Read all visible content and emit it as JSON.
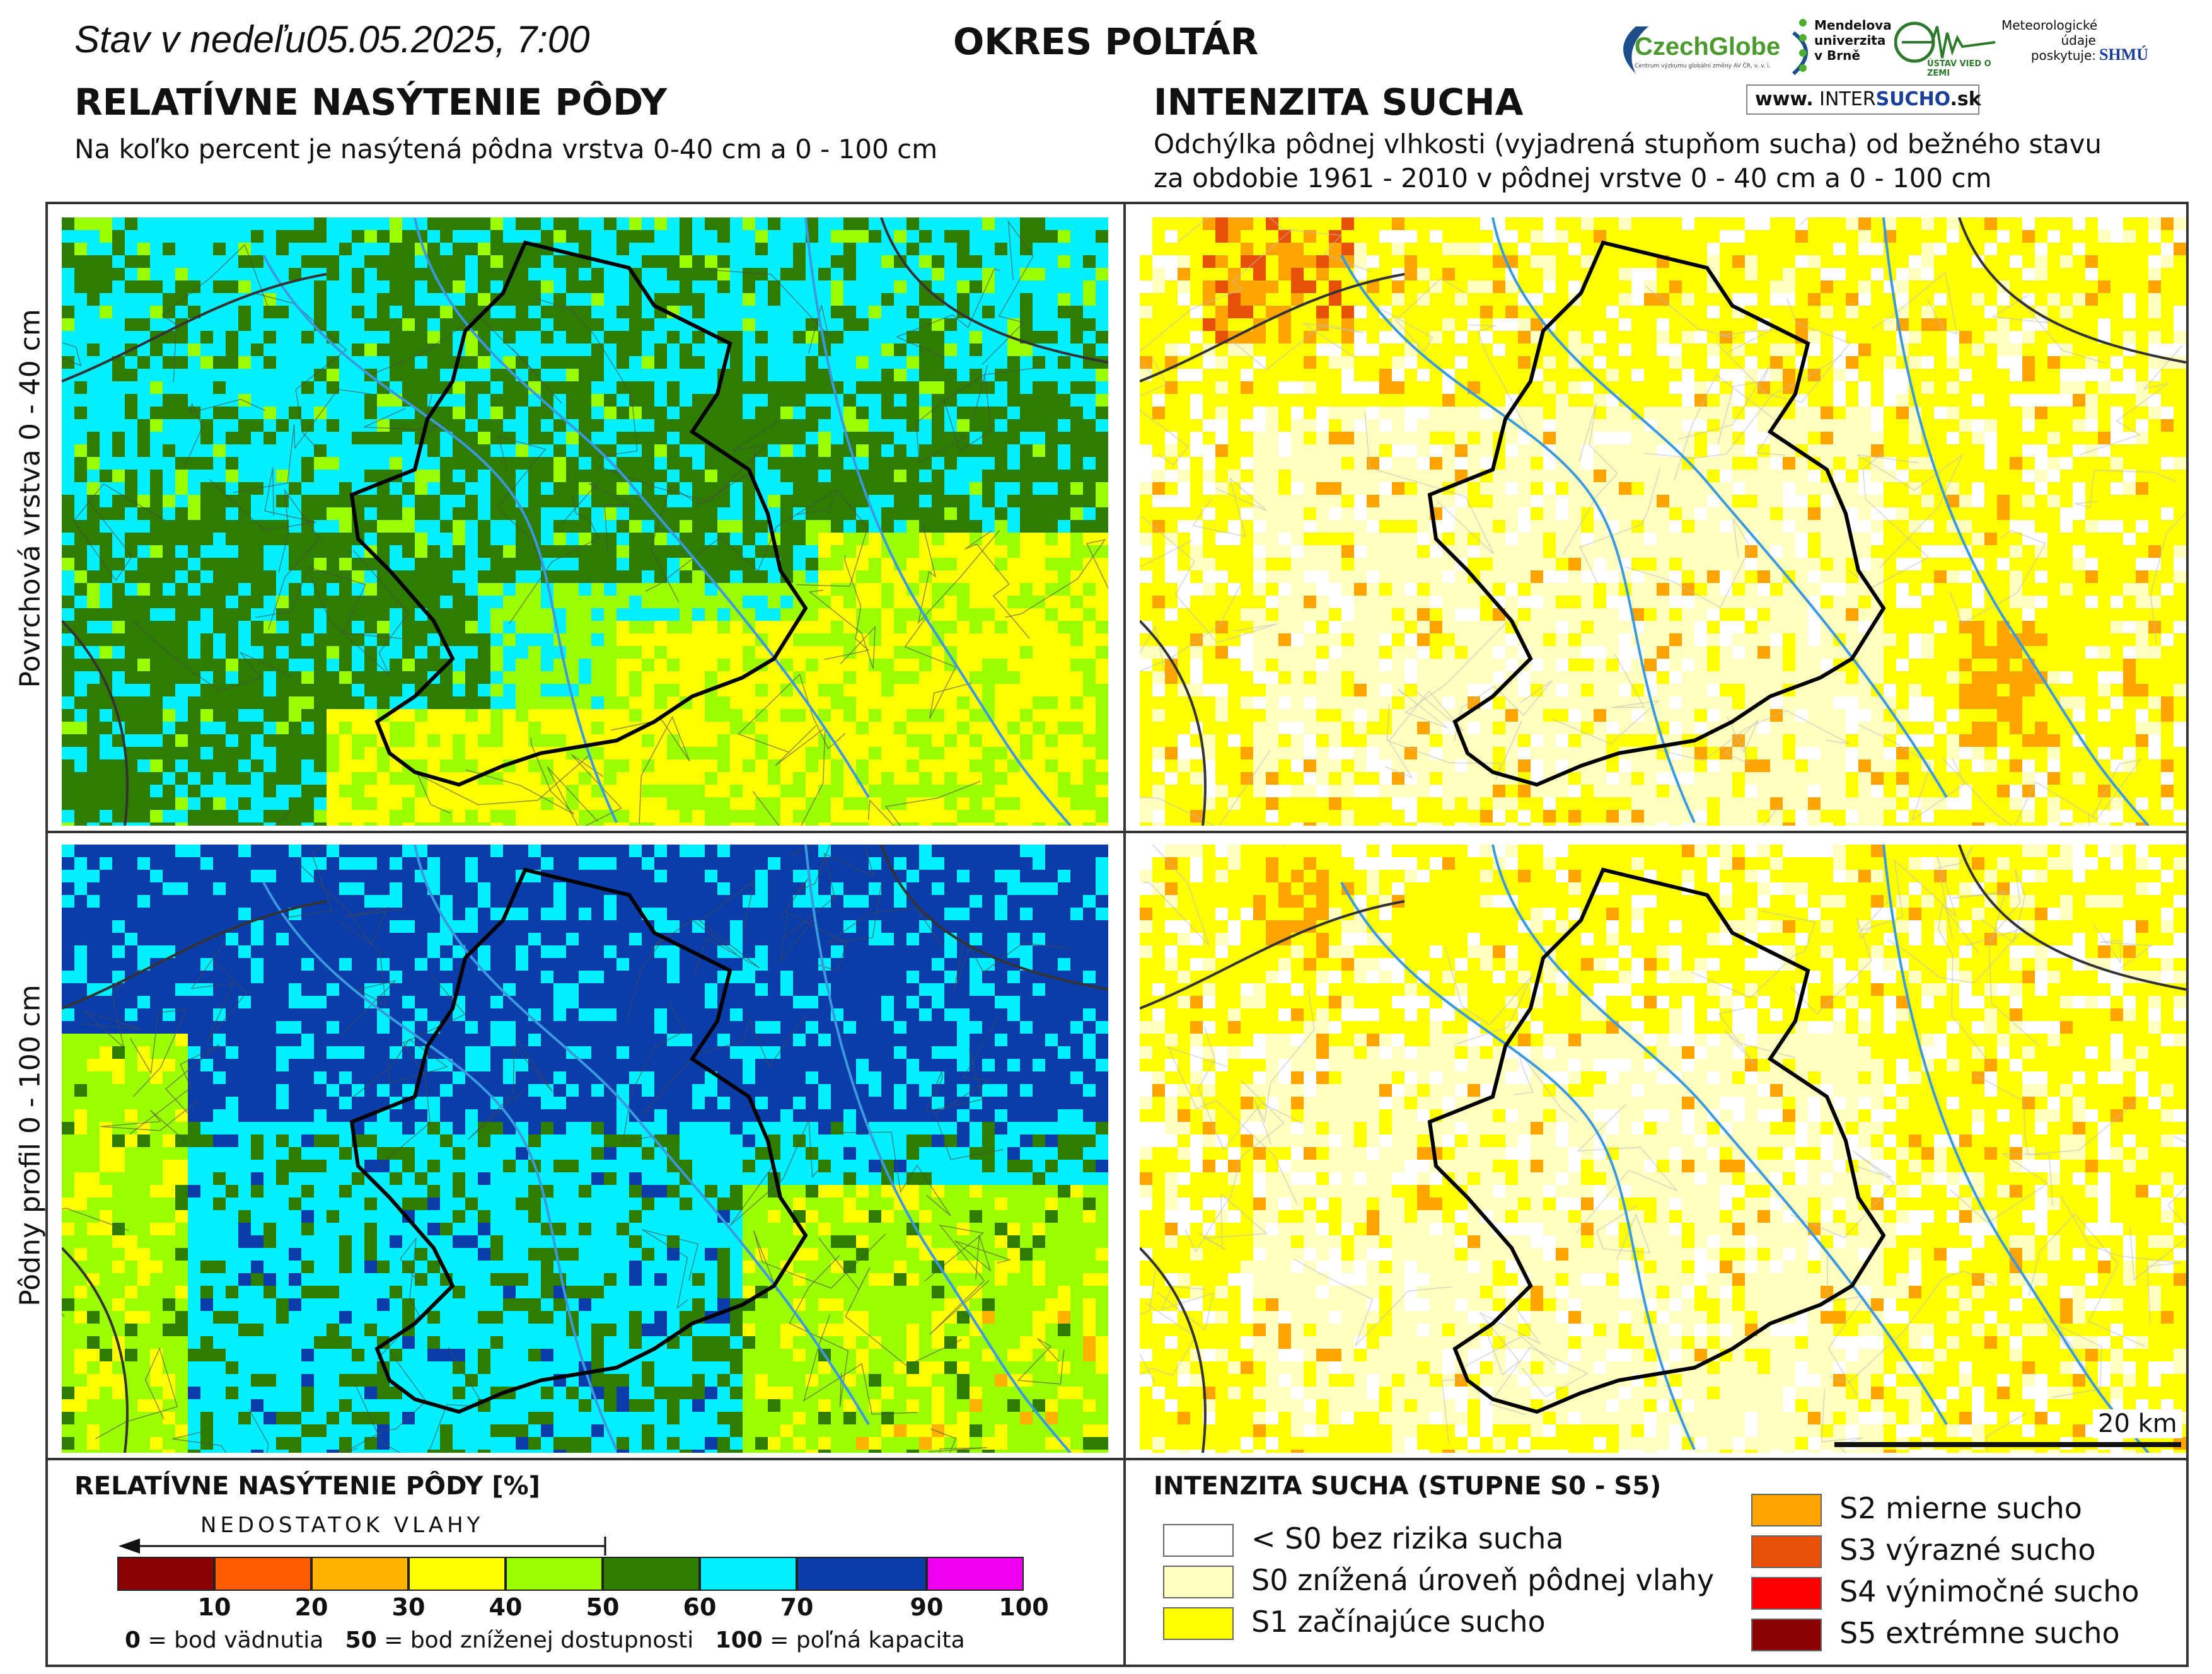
{
  "header": {
    "stav_label": "Stav v nedeľu",
    "date_time": "05.05.2025, 7:00",
    "district": "OKRES POLTÁR",
    "left_title": "RELATÍVNE NASÝTENIE PÔDY",
    "left_subtitle": "Na koľko percent je nasýtená pôdna vrstva 0-40 cm a 0 - 100 cm",
    "right_title": "INTENZITA SUCHA",
    "right_subtitle_1": "Odchýlka pôdnej vlhkosti (vyjadrená stupňom sucha) od bežného stavu",
    "right_subtitle_2": "za obdobie 1961 - 2010 v pôdnej vrstve 0 - 40 cm a 0 - 100 cm"
  },
  "logos": {
    "czechglobe": "CzechGlobe",
    "czechglobe_sub": "Centrum výzkumu globální změny AV ČR, v. v. i.",
    "mendelu": [
      "Mendelova",
      "univerzita",
      "v Brně"
    ],
    "ustav": "ÚSTAV VIED O ZEMI",
    "meteo": [
      "Meteorologické",
      "údaje",
      "poskytuje:"
    ],
    "shmu": "SHMÚ",
    "intersucho_prefix": "www.",
    "intersucho_a": "INTER",
    "intersucho_b": "SUCHO",
    "intersucho_suffix": ".sk"
  },
  "row_labels": {
    "top": "Povrchová vrstva 0 - 40 cm",
    "bottom": "Pôdny profil 0 - 100 cm"
  },
  "scale_bar": "20 km",
  "left_legend": {
    "title": "RELATÍVNE NASÝTENIE PÔDY [%]",
    "arrow_label": "NEDOSTATOK VLAHY",
    "bins": [
      {
        "color": "#8b0000"
      },
      {
        "color": "#ff5a00"
      },
      {
        "color": "#ffb300"
      },
      {
        "color": "#ffff00"
      },
      {
        "color": "#9cff00"
      },
      {
        "color": "#2e7d00"
      },
      {
        "color": "#00f0ff"
      },
      {
        "color": "#0a3caa"
      },
      {
        "color": "#ee00ee"
      }
    ],
    "ticks": [
      "10",
      "20",
      "30",
      "40",
      "50",
      "60",
      "70",
      "90",
      "100"
    ],
    "note_0_num": "0",
    "note_0_text": " = bod vädnutia",
    "note_50_num": "50",
    "note_50_text": " = bod zníženej dostupnosti",
    "note_100_num": "100",
    "note_100_text": " = poľná kapacita"
  },
  "right_legend": {
    "title": "INTENZITA SUCHA (STUPNE S0 - S5)",
    "items": [
      {
        "label": "< S0 bez rizika sucha",
        "color": "#ffffff"
      },
      {
        "label": "S0 znížená úroveň pôdnej vlahy",
        "color": "#ffffc0"
      },
      {
        "label": "S1 začínajúce sucho",
        "color": "#ffff00"
      },
      {
        "label": "S2 mierne sucho",
        "color": "#ffa500"
      },
      {
        "label": "S3 výrazné sucho",
        "color": "#e8500a"
      },
      {
        "label": "S4 výnimočné sucho",
        "color": "#ff0000"
      },
      {
        "label": "S5 extrémne sucho",
        "color": "#8b0000"
      }
    ]
  }
}
